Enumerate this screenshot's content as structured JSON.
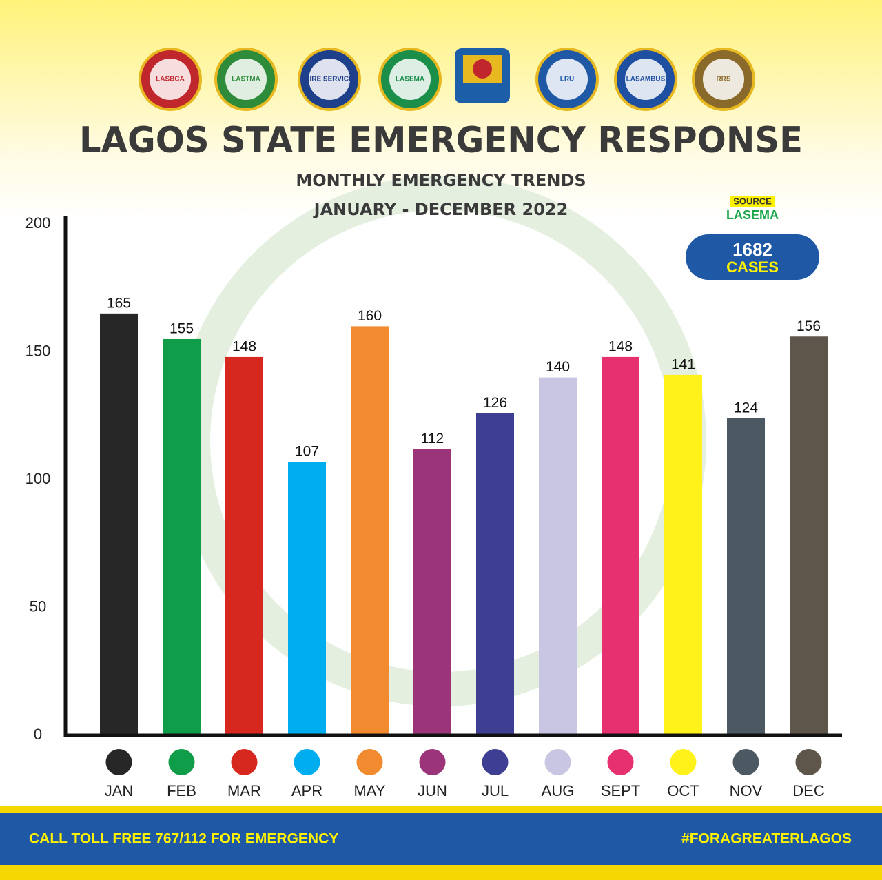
{
  "header": {
    "logos": [
      {
        "label": "LASBCA",
        "color": "#c0272d"
      },
      {
        "label": "LASTMA",
        "color": "#2e8b3a"
      },
      {
        "label": "FIRE SERVICE",
        "color": "#1e3f8a"
      },
      {
        "label": "LASEMA",
        "color": "#1b8f4a"
      },
      {
        "label": "LRU",
        "color": "#1f58a5"
      },
      {
        "label": "LASAMBUS",
        "color": "#1f4fa0"
      },
      {
        "label": "RRS",
        "color": "#8a6a2a"
      }
    ],
    "source_label": "SOURCE",
    "source": "LASEMA",
    "total_cases": 1682,
    "total_label": "CASES"
  },
  "chart_data": {
    "type": "bar",
    "title": "LAGOS STATE EMERGENCY RESPONSE",
    "subtitle": "MONTHLY EMERGENCY TRENDS",
    "period": "JANUARY - DECEMBER 2022",
    "categories": [
      "JAN",
      "FEB",
      "MAR",
      "APR",
      "MAY",
      "JUN",
      "JUL",
      "AUG",
      "SEPT",
      "OCT",
      "NOV",
      "DEC"
    ],
    "values": [
      165,
      155,
      148,
      107,
      160,
      112,
      126,
      140,
      148,
      141,
      124,
      156
    ],
    "colors": [
      "#272727",
      "#0f9d4a",
      "#d7281f",
      "#00adee",
      "#f28a30",
      "#9b3479",
      "#3e3f93",
      "#c8c6e2",
      "#e6306f",
      "#fef21a",
      "#4c5963",
      "#5e554b"
    ],
    "ylim": [
      0,
      200
    ],
    "yticks": [
      0,
      50,
      100,
      150,
      200
    ],
    "grid": false
  },
  "footer": {
    "left": "CALL TOLL FREE 767/112 FOR EMERGENCY",
    "right": "#FORAGREATERLAGOS"
  }
}
